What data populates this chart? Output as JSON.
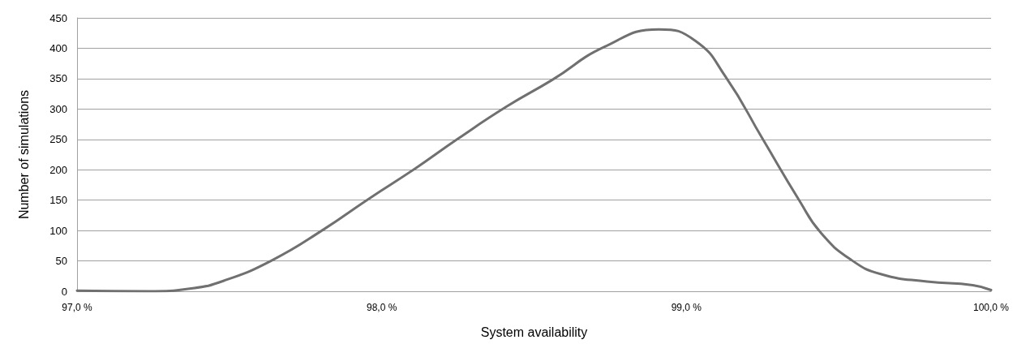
{
  "chart_data": {
    "type": "line",
    "xlabel": "System availability",
    "ylabel": "Number of simulations",
    "x": [
      97.0,
      97.23,
      97.38,
      97.48,
      97.64,
      97.81,
      97.96,
      98.11,
      98.25,
      98.41,
      98.56,
      98.73,
      98.91,
      99.03,
      99.13,
      99.25,
      99.37,
      99.44,
      99.54,
      99.64,
      99.79,
      99.94,
      100.0
    ],
    "series": [
      {
        "color": "#707070",
        "values": [
          1,
          0,
          5,
          17,
          51,
          102,
          153,
          202,
          251,
          304,
          348,
          402,
          431,
          412,
          352,
          251,
          150,
          97,
          52,
          28,
          16,
          10,
          2
        ]
      }
    ],
    "xlim": [
      97,
      100
    ],
    "xticks": [
      {
        "value": 97,
        "label": "97,0 %"
      },
      {
        "value": 98,
        "label": "98,0 %"
      },
      {
        "value": 99,
        "label": "99,0 %"
      },
      {
        "value": 100,
        "label": "100,0 %"
      }
    ],
    "ylim": [
      0,
      450
    ],
    "yticks": [
      0,
      50,
      100,
      150,
      200,
      250,
      300,
      350,
      400,
      450
    ],
    "grid": "y",
    "marker": "none",
    "line_style": "solid"
  }
}
